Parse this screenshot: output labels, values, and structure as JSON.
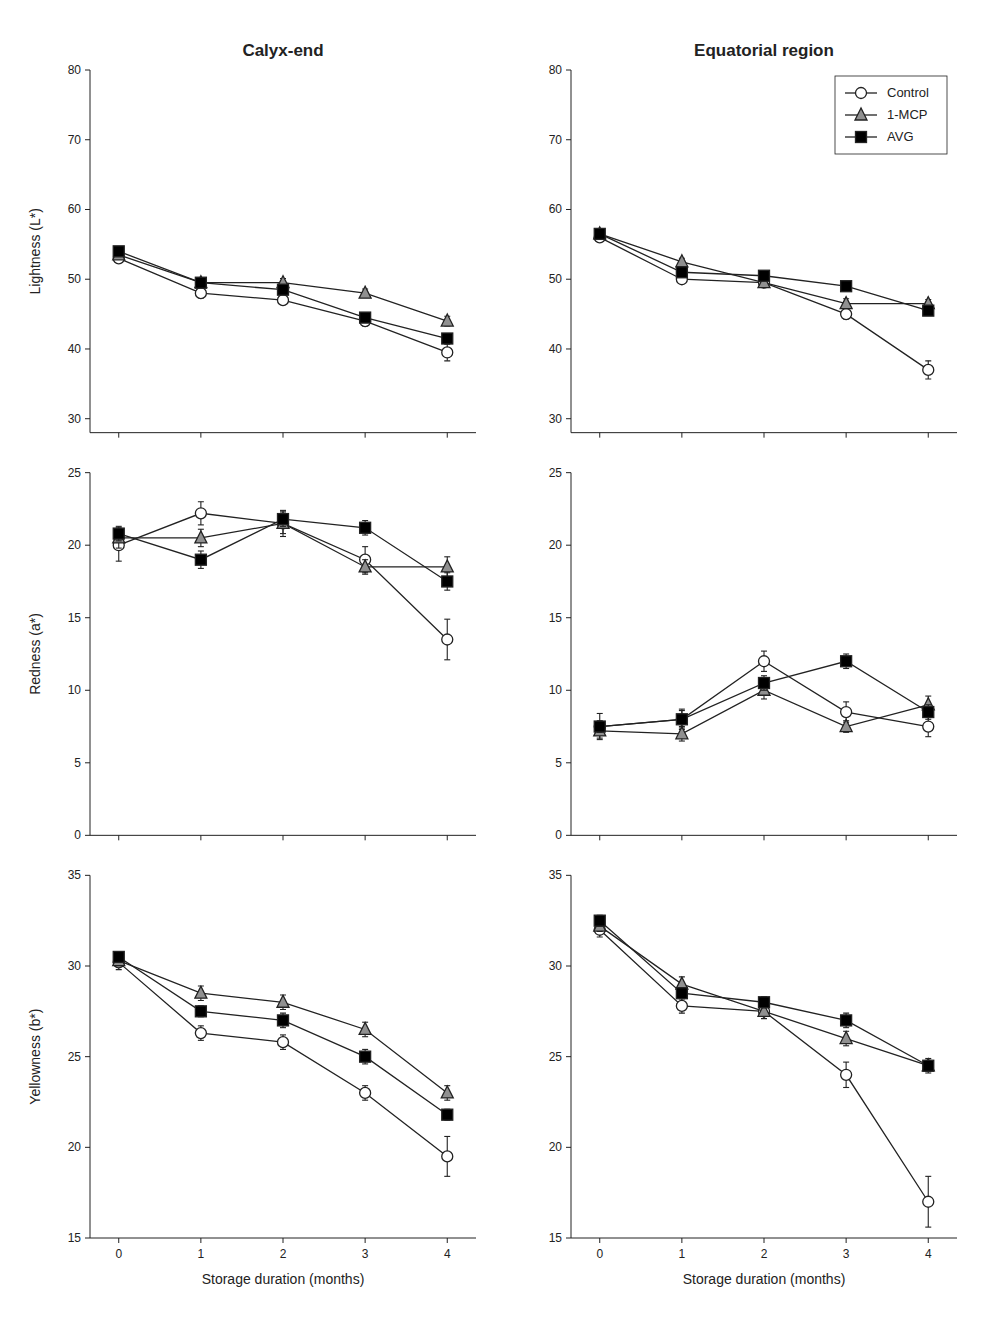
{
  "chart_data": [
    {
      "type": "line",
      "title": "Calyx-end",
      "ylabel": "Lightness (L*)",
      "x": [
        0,
        1,
        2,
        3,
        4
      ],
      "xlim": [
        -0.35,
        4.35
      ],
      "xticks": [
        0,
        1,
        2,
        3,
        4
      ],
      "ylim": [
        28,
        80
      ],
      "yticks": [
        30,
        40,
        50,
        60,
        70,
        80
      ],
      "grid": false,
      "tick_labels": "y",
      "series": [
        {
          "name": "Control",
          "color": "#ffffff",
          "marker": "circle",
          "values": [
            53.0,
            48.0,
            47.0,
            44.0,
            39.5
          ],
          "errors": [
            0.4,
            0.7,
            0.6,
            0.7,
            1.2
          ]
        },
        {
          "name": "1-MCP",
          "color": "#909090",
          "marker": "triangle",
          "values": [
            53.5,
            49.5,
            49.5,
            48.0,
            44.0
          ],
          "errors": [
            0.3,
            0.5,
            0.6,
            0.6,
            0.7
          ]
        },
        {
          "name": "AVG",
          "color": "#000000",
          "marker": "square",
          "values": [
            54.0,
            49.5,
            48.5,
            44.5,
            41.5
          ],
          "errors": [
            0.3,
            0.5,
            0.5,
            0.5,
            0.6
          ]
        }
      ]
    },
    {
      "type": "line",
      "title": "Equatorial region",
      "x": [
        0,
        1,
        2,
        3,
        4
      ],
      "xlim": [
        -0.35,
        4.35
      ],
      "xticks": [
        0,
        1,
        2,
        3,
        4
      ],
      "ylim": [
        28,
        80
      ],
      "yticks": [
        30,
        40,
        50,
        60,
        70,
        80
      ],
      "grid": false,
      "tick_labels": "y",
      "legend": "upper right",
      "series": [
        {
          "name": "Control",
          "color": "#ffffff",
          "marker": "circle",
          "values": [
            56.0,
            50.0,
            49.5,
            45.0,
            37.0
          ],
          "errors": [
            0.4,
            0.6,
            0.6,
            0.7,
            1.3
          ]
        },
        {
          "name": "1-MCP",
          "color": "#909090",
          "marker": "triangle",
          "values": [
            56.5,
            52.5,
            49.5,
            46.5,
            46.5
          ],
          "errors": [
            0.3,
            0.5,
            0.5,
            0.7,
            0.6
          ]
        },
        {
          "name": "AVG",
          "color": "#000000",
          "marker": "square",
          "values": [
            56.5,
            51.0,
            50.5,
            49.0,
            45.5
          ],
          "errors": [
            0.3,
            0.4,
            0.5,
            0.5,
            0.5
          ]
        }
      ]
    },
    {
      "type": "line",
      "ylabel": "Redness (a*)",
      "x": [
        0,
        1,
        2,
        3,
        4
      ],
      "xlim": [
        -0.35,
        4.35
      ],
      "xticks": [
        0,
        1,
        2,
        3,
        4
      ],
      "ylim": [
        0,
        25
      ],
      "yticks": [
        0,
        5,
        10,
        15,
        20,
        25
      ],
      "grid": false,
      "tick_labels": "y",
      "series": [
        {
          "name": "Control",
          "color": "#ffffff",
          "marker": "circle",
          "values": [
            20.0,
            22.2,
            21.5,
            19.0,
            13.5
          ],
          "errors": [
            1.1,
            0.8,
            0.9,
            0.9,
            1.4
          ]
        },
        {
          "name": "1-MCP",
          "color": "#909090",
          "marker": "triangle",
          "values": [
            20.5,
            20.5,
            21.5,
            18.5,
            18.5
          ],
          "errors": [
            0.7,
            0.6,
            0.7,
            0.5,
            0.7
          ]
        },
        {
          "name": "AVG",
          "color": "#000000",
          "marker": "square",
          "values": [
            20.8,
            19.0,
            21.8,
            21.2,
            17.5
          ],
          "errors": [
            0.5,
            0.6,
            0.5,
            0.5,
            0.6
          ]
        }
      ]
    },
    {
      "type": "line",
      "x": [
        0,
        1,
        2,
        3,
        4
      ],
      "xlim": [
        -0.35,
        4.35
      ],
      "xticks": [
        0,
        1,
        2,
        3,
        4
      ],
      "ylim": [
        0,
        25
      ],
      "yticks": [
        0,
        5,
        10,
        15,
        20,
        25
      ],
      "grid": false,
      "tick_labels": "y",
      "series": [
        {
          "name": "Control",
          "color": "#ffffff",
          "marker": "circle",
          "values": [
            7.5,
            8.0,
            12.0,
            8.5,
            7.5
          ],
          "errors": [
            0.9,
            0.7,
            0.7,
            0.7,
            0.7
          ]
        },
        {
          "name": "1-MCP",
          "color": "#909090",
          "marker": "triangle",
          "values": [
            7.2,
            7.0,
            10.0,
            7.5,
            9.0
          ],
          "errors": [
            0.5,
            0.5,
            0.6,
            0.4,
            0.6
          ]
        },
        {
          "name": "AVG",
          "color": "#000000",
          "marker": "square",
          "values": [
            7.5,
            8.0,
            10.5,
            12.0,
            8.5
          ],
          "errors": [
            0.4,
            0.6,
            0.5,
            0.5,
            0.5
          ]
        }
      ]
    },
    {
      "type": "line",
      "ylabel": "Yellowness (b*)",
      "xlabel": "Storage duration (months)",
      "x": [
        0,
        1,
        2,
        3,
        4
      ],
      "xlim": [
        -0.35,
        4.35
      ],
      "xticks": [
        0,
        1,
        2,
        3,
        4
      ],
      "ylim": [
        15,
        35
      ],
      "yticks": [
        15,
        20,
        25,
        30,
        35
      ],
      "grid": false,
      "series": [
        {
          "name": "Control",
          "color": "#ffffff",
          "marker": "circle",
          "values": [
            30.2,
            26.3,
            25.8,
            23.0,
            19.5
          ],
          "errors": [
            0.4,
            0.4,
            0.4,
            0.4,
            1.1
          ]
        },
        {
          "name": "1-MCP",
          "color": "#909090",
          "marker": "triangle",
          "values": [
            30.3,
            28.5,
            28.0,
            26.5,
            23.0
          ],
          "errors": [
            0.3,
            0.4,
            0.4,
            0.4,
            0.4
          ]
        },
        {
          "name": "AVG",
          "color": "#000000",
          "marker": "square",
          "values": [
            30.5,
            27.5,
            27.0,
            25.0,
            21.8
          ],
          "errors": [
            0.3,
            0.3,
            0.4,
            0.4,
            0.3
          ]
        }
      ]
    },
    {
      "type": "line",
      "xlabel": "Storage duration (months)",
      "x": [
        0,
        1,
        2,
        3,
        4
      ],
      "xlim": [
        -0.35,
        4.35
      ],
      "xticks": [
        0,
        1,
        2,
        3,
        4
      ],
      "ylim": [
        15,
        35
      ],
      "yticks": [
        15,
        20,
        25,
        30,
        35
      ],
      "grid": false,
      "series": [
        {
          "name": "Control",
          "color": "#ffffff",
          "marker": "circle",
          "values": [
            32.0,
            27.8,
            27.5,
            24.0,
            17.0
          ],
          "errors": [
            0.4,
            0.4,
            0.4,
            0.7,
            1.4
          ]
        },
        {
          "name": "1-MCP",
          "color": "#909090",
          "marker": "triangle",
          "values": [
            32.2,
            29.0,
            27.5,
            26.0,
            24.5
          ],
          "errors": [
            0.3,
            0.4,
            0.4,
            0.4,
            0.4
          ]
        },
        {
          "name": "AVG",
          "color": "#000000",
          "marker": "square",
          "values": [
            32.5,
            28.5,
            28.0,
            27.0,
            24.5
          ],
          "errors": [
            0.3,
            0.3,
            0.3,
            0.4,
            0.3
          ]
        }
      ]
    }
  ]
}
